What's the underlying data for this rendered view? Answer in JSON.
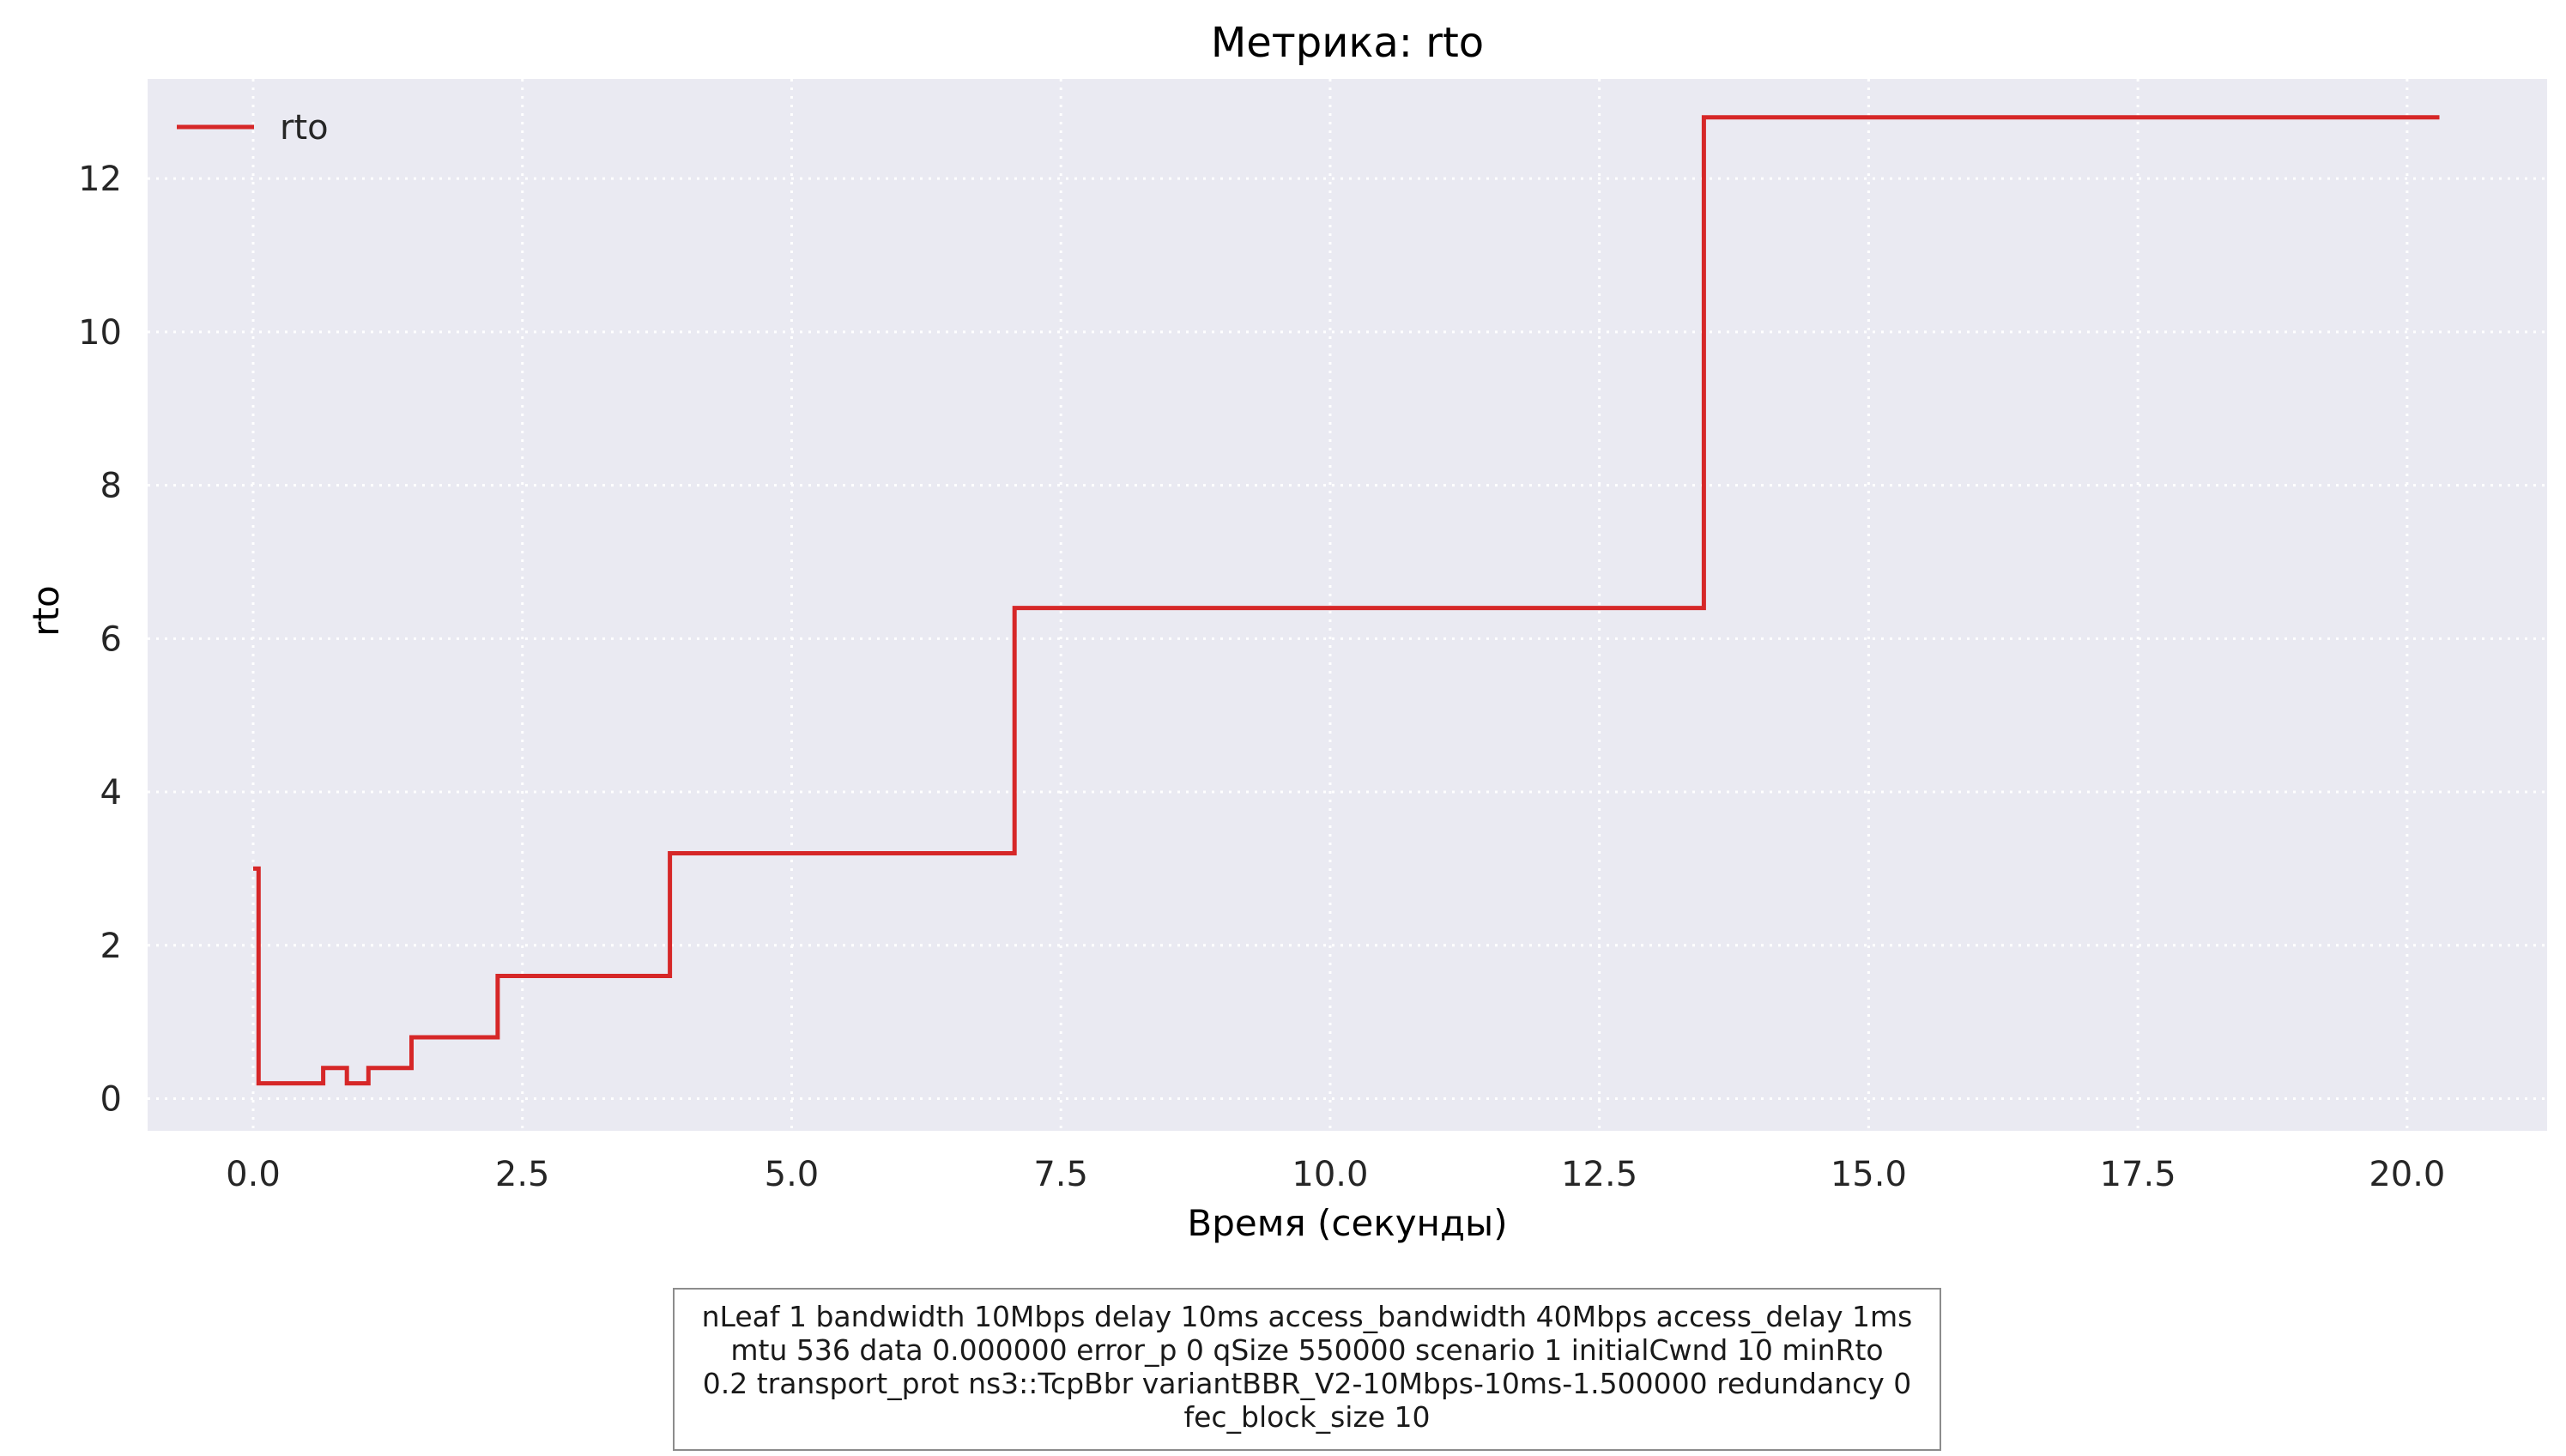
{
  "chart_data": {
    "type": "line",
    "title": "Метрика: rto",
    "xlabel": "Время (секунды)",
    "ylabel": "rto",
    "xlim": [
      -0.98,
      21.3
    ],
    "ylim": [
      -0.42,
      13.3
    ],
    "xticks": [
      0.0,
      2.5,
      5.0,
      7.5,
      10.0,
      12.5,
      15.0,
      17.5,
      20.0
    ],
    "xtick_labels": [
      "0.0",
      "2.5",
      "5.0",
      "7.5",
      "10.0",
      "12.5",
      "15.0",
      "17.5",
      "20.0"
    ],
    "yticks": [
      0,
      2,
      4,
      6,
      8,
      10,
      12
    ],
    "ytick_labels": [
      "0",
      "2",
      "4",
      "6",
      "8",
      "10",
      "12"
    ],
    "grid": true,
    "legend_position": "top-left",
    "background": "#eaeaf2",
    "series": [
      {
        "name": "rto",
        "color": "#d62728",
        "step": true,
        "x": [
          0.0,
          0.05,
          0.65,
          0.87,
          1.07,
          1.47,
          2.27,
          3.87,
          7.07,
          13.47,
          20.3
        ],
        "y": [
          3.0,
          0.2,
          0.4,
          0.2,
          0.4,
          0.8,
          1.6,
          3.2,
          6.4,
          12.8,
          12.8
        ]
      }
    ]
  },
  "caption": {
    "lines": [
      "nLeaf 1 bandwidth 10Mbps delay  10ms access_bandwidth 40Mbps access_delay 1ms",
      "mtu 536 data  0.000000 error_p 0 qSize 550000 scenario 1 initialCwnd  10 minRto",
      "0.2 transport_prot ns3::TcpBbr variantBBR_V2-10Mbps-10ms-1.500000 redundancy 0",
      "fec_block_size 10"
    ]
  }
}
